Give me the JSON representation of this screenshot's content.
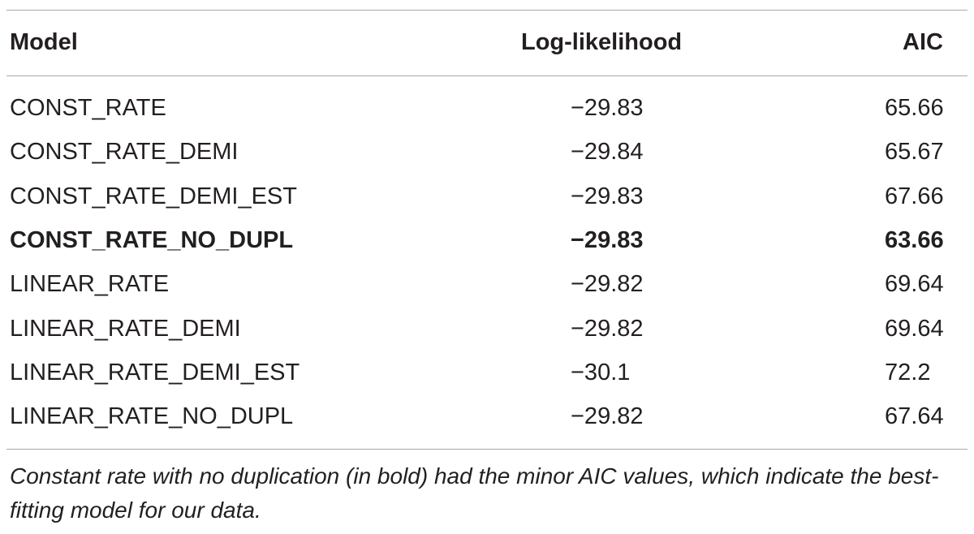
{
  "table": {
    "header": [
      "Model",
      "Log-likelihood",
      "AIC"
    ],
    "rows": [
      [
        "CONST_RATE",
        "−29.83",
        "65.66"
      ],
      [
        "CONST_RATE_DEMI",
        "−29.84",
        "65.67"
      ],
      [
        "CONST_RATE_DEMI_EST",
        "−29.83",
        "67.66"
      ],
      [
        "CONST_RATE_NO_DUPL",
        "−29.83",
        "63.66"
      ],
      [
        "LINEAR_RATE",
        "−29.82",
        "69.64"
      ],
      [
        "LINEAR_RATE_DEMI",
        "−29.82",
        "69.64"
      ],
      [
        "LINEAR_RATE_DEMI_EST",
        "−30.1",
        "72.2"
      ],
      [
        "LINEAR_RATE_NO_DUPL",
        "−29.82",
        "67.64"
      ]
    ],
    "caption": "Constant rate with no duplication (in bold) had the minor AIC values, which indicate the best-fitting model for our data."
  }
}
